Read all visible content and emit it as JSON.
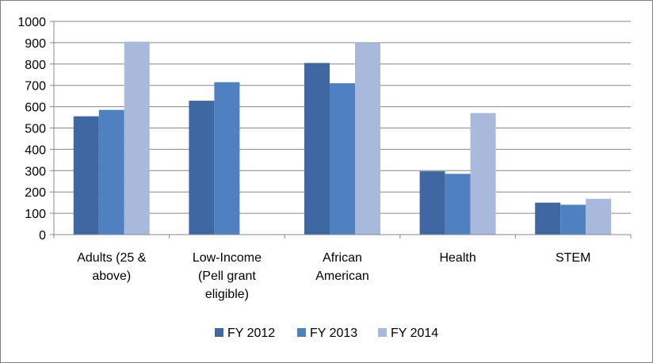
{
  "chart_data": {
    "type": "bar",
    "categories": [
      [
        "Adults (25 &",
        "above)"
      ],
      [
        "Low-Income",
        "(Pell grant",
        "eligible)"
      ],
      [
        "African",
        "American"
      ],
      [
        "Health"
      ],
      [
        "STEM"
      ]
    ],
    "series": [
      {
        "name": "FY 2012",
        "color": "#3f68a2",
        "values": [
          555,
          628,
          805,
          297,
          150
        ]
      },
      {
        "name": "FY 2013",
        "color": "#4f81c0",
        "values": [
          585,
          715,
          710,
          285,
          140
        ]
      },
      {
        "name": "FY 2014",
        "color": "#a9b9db",
        "values": [
          905,
          null,
          900,
          570,
          168
        ]
      }
    ],
    "ylim": [
      0,
      1000
    ],
    "yticks": [
      "0",
      "100",
      "200",
      "300",
      "400",
      "500",
      "600",
      "700",
      "800",
      "900",
      "1000"
    ],
    "grid": true,
    "legend_position": "bottom"
  }
}
